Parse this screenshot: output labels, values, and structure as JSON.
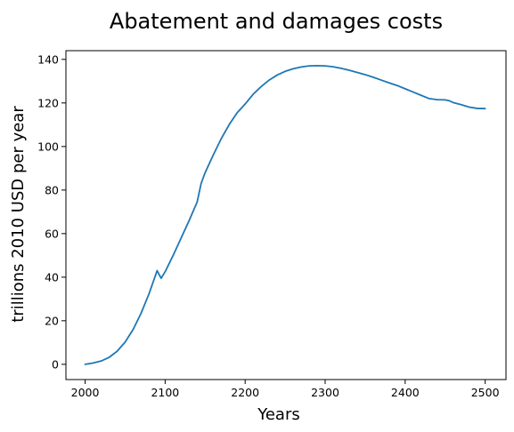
{
  "chart_data": {
    "type": "line",
    "title": "Abatement and damages costs",
    "xlabel": "Years",
    "ylabel": "trillions 2010 USD per year",
    "xlim": [
      1976,
      2526
    ],
    "ylim": [
      -7,
      144
    ],
    "xticks": [
      2000,
      2100,
      2200,
      2300,
      2400,
      2500
    ],
    "yticks": [
      0,
      20,
      40,
      60,
      80,
      100,
      120,
      140
    ],
    "grid": false,
    "legend": "none",
    "color": "#1f77b4",
    "series": [
      {
        "x": [
          2000,
          2010,
          2020,
          2030,
          2040,
          2050,
          2060,
          2070,
          2080,
          2090,
          2095,
          2100,
          2110,
          2120,
          2130,
          2140,
          2145,
          2150,
          2160,
          2170,
          2180,
          2190,
          2200,
          2210,
          2220,
          2230,
          2240,
          2250,
          2260,
          2270,
          2280,
          2290,
          2300,
          2310,
          2320,
          2330,
          2340,
          2350,
          2360,
          2370,
          2380,
          2390,
          2400,
          2410,
          2420,
          2430,
          2440,
          2450,
          2455,
          2460,
          2470,
          2480,
          2490,
          2500
        ],
        "y": [
          0,
          0.6,
          1.5,
          3.2,
          6,
          10.2,
          16,
          23.5,
          32.5,
          43,
          39.5,
          42.5,
          50,
          58,
          66,
          74.5,
          83,
          88,
          96,
          103.5,
          110,
          115.5,
          119.5,
          124,
          127.5,
          130.5,
          132.8,
          134.5,
          135.7,
          136.5,
          137,
          137.1,
          137,
          136.6,
          135.9,
          135,
          134,
          133,
          131.8,
          130.5,
          129.2,
          128,
          126.5,
          125,
          123.5,
          122,
          121.5,
          121.4,
          121,
          120.2,
          119.2,
          118.1,
          117.5,
          117.4
        ]
      }
    ]
  }
}
